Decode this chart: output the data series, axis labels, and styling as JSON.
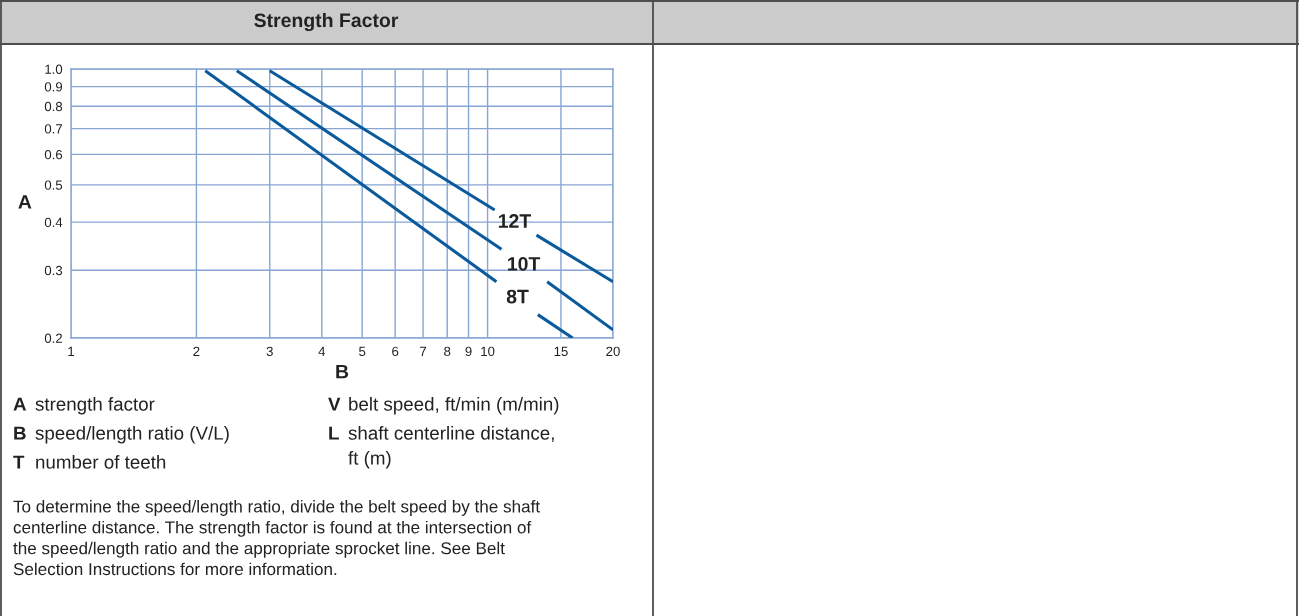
{
  "chart_data": {
    "type": "line",
    "title": "Strength Factor",
    "xlabel": "B",
    "ylabel": "A",
    "xlim": [
      1,
      20
    ],
    "ylim": [
      0.2,
      1.0
    ],
    "xticks": [
      1,
      2,
      3,
      4,
      5,
      6,
      7,
      8,
      9,
      10,
      15,
      20
    ],
    "yticks": [
      0.2,
      0.3,
      0.4,
      0.5,
      0.6,
      0.7,
      0.8,
      0.9,
      {
        "value": 1,
        "label": "1.0"
      }
    ],
    "log": "xy",
    "grid": true,
    "series": [
      {
        "name": "12T",
        "color": "#0a5a9c",
        "x": [
          3.0,
          10.4,
          11.6,
          13.1,
          20
        ],
        "values": [
          0.99,
          0.43,
          null,
          0.37,
          0.28
        ]
      },
      {
        "name": "10T",
        "color": "#0a5a9c",
        "x": [
          2.5,
          10.8,
          12.2,
          13.9,
          20
        ],
        "values": [
          0.99,
          0.34,
          null,
          0.28,
          0.21
        ]
      },
      {
        "name": "8T",
        "color": "#0a5a9c",
        "x": [
          2.1,
          10.5,
          11.8,
          13.2,
          16
        ],
        "values": [
          0.99,
          0.28,
          null,
          0.23,
          0.2
        ]
      }
    ],
    "annotations": [
      "A strength factor",
      "B speed/length ratio (V/L)",
      "T number of teeth",
      "V belt speed, ft/min (m/min)",
      "L shaft centerline distance,\nft (m)",
      "To determine the speed/length ratio, divide the belt speed by the shaft\ncenterline distance. The strength factor is found at the intersection of\nthe speed/length ratio and the appropriate sprocket line. See Belt\nSelection Instructions for more information."
    ]
  }
}
